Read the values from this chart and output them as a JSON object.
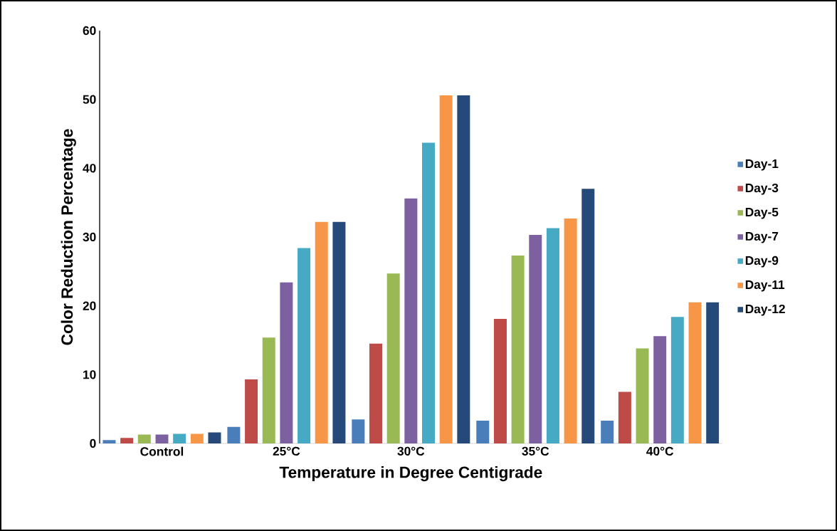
{
  "chart_data": {
    "type": "bar",
    "xlabel": "Temperature in Degree Centigrade",
    "ylabel": "Color Reduction Percentage",
    "categories": [
      "Control",
      "25°C",
      "30°C",
      "35°C",
      "40°C"
    ],
    "series": [
      {
        "name": "Day-1",
        "color": "#4a7ebb",
        "values": [
          0.5,
          2.4,
          3.5,
          3.3,
          3.3
        ]
      },
      {
        "name": "Day-3",
        "color": "#be4b48",
        "values": [
          0.8,
          9.3,
          14.5,
          18.1,
          7.5
        ]
      },
      {
        "name": "Day-5",
        "color": "#98b954",
        "values": [
          1.3,
          15.4,
          24.7,
          27.3,
          13.8
        ]
      },
      {
        "name": "Day-7",
        "color": "#7d60a0",
        "values": [
          1.3,
          23.4,
          35.6,
          30.3,
          15.6
        ]
      },
      {
        "name": "Day-9",
        "color": "#46aac5",
        "values": [
          1.4,
          28.4,
          43.7,
          31.3,
          18.4
        ]
      },
      {
        "name": "Day-11",
        "color": "#f79646",
        "values": [
          1.4,
          32.2,
          50.6,
          32.7,
          20.5
        ]
      },
      {
        "name": "Day-12",
        "color": "#254a7a",
        "values": [
          1.6,
          32.2,
          50.6,
          37.0,
          20.5
        ]
      }
    ],
    "ylim": [
      0,
      60
    ],
    "yticks": [
      0,
      10,
      20,
      30,
      40,
      50,
      60
    ],
    "grid": false,
    "legend": "right"
  }
}
